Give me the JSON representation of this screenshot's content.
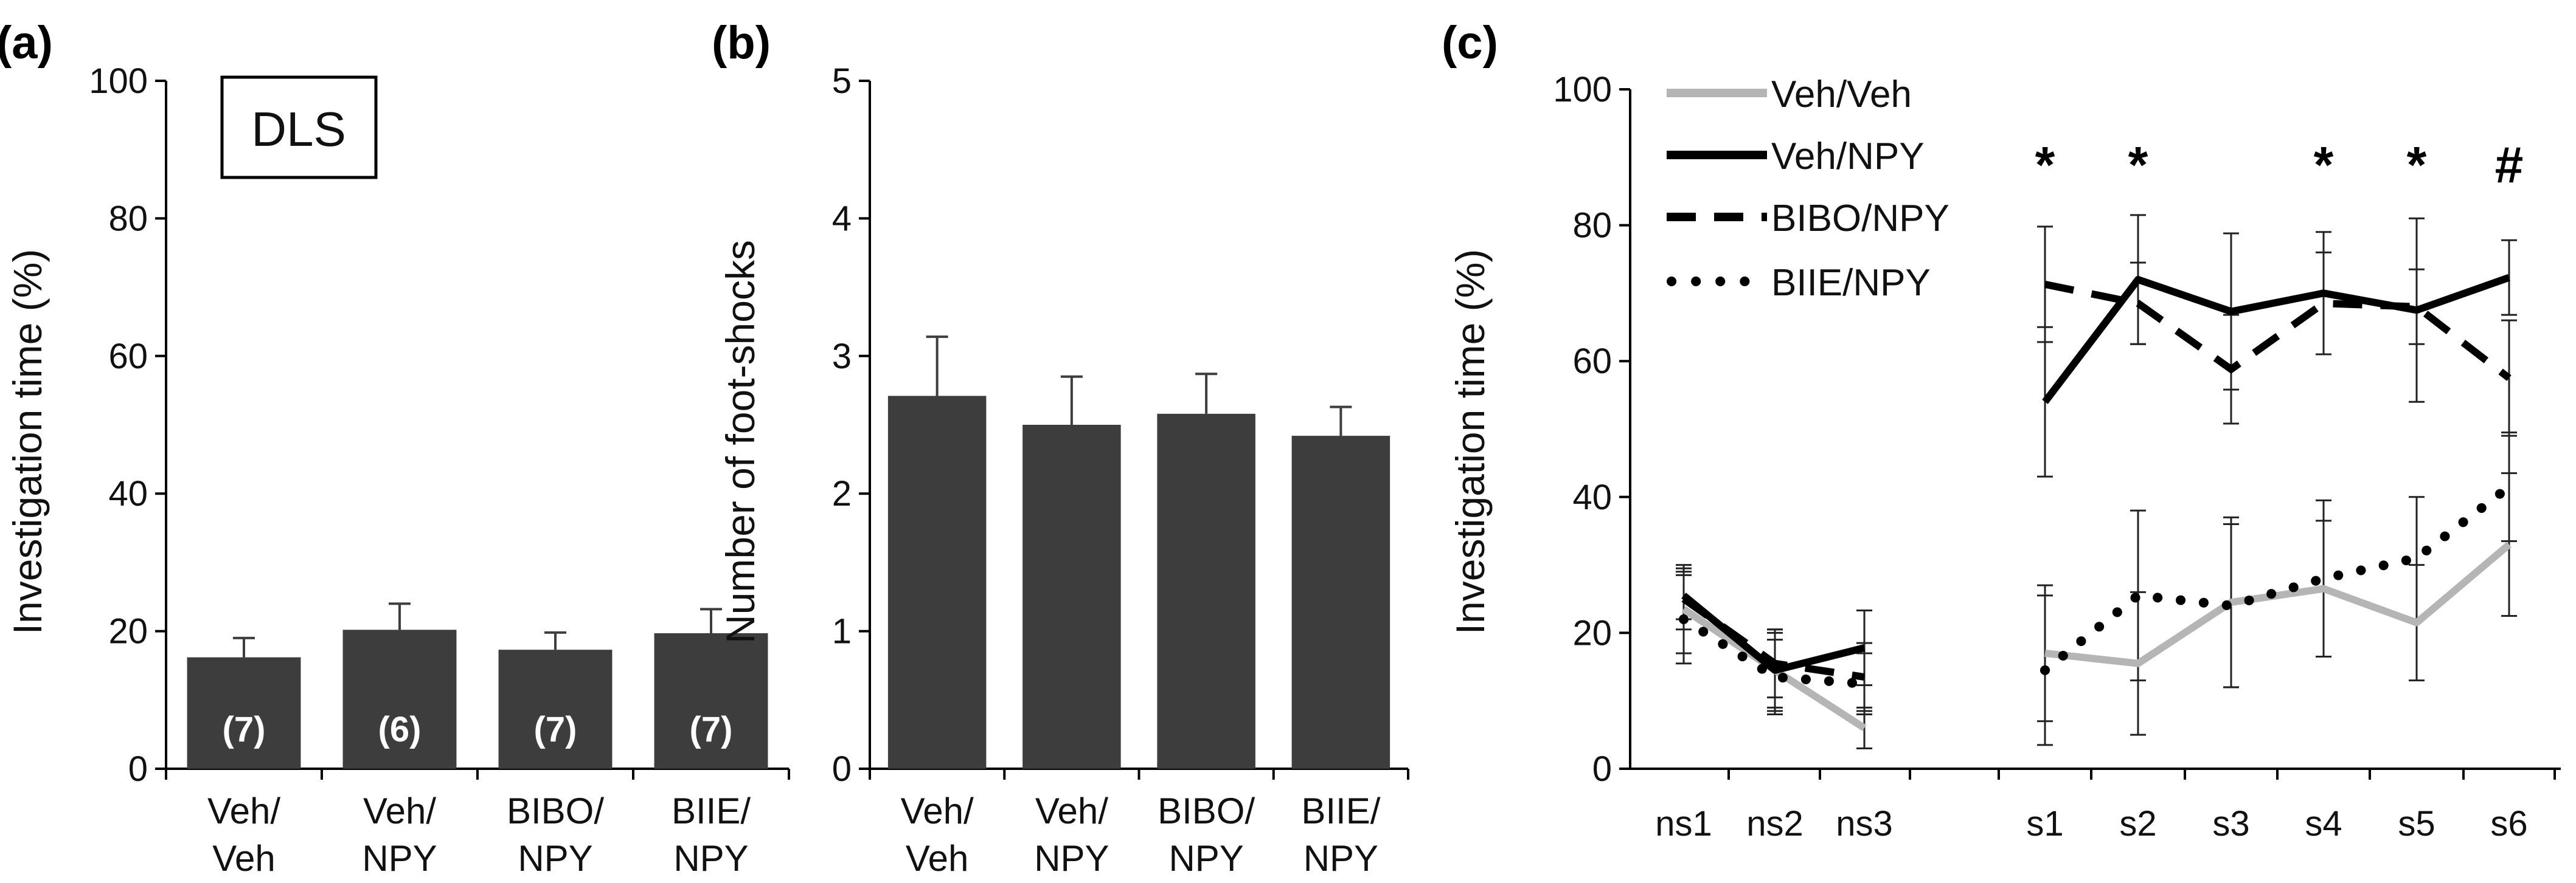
{
  "colors": {
    "bar": "#3d3d3d",
    "axis": "#000000",
    "veh_veh": "#b5b5b5",
    "black": "#000000",
    "bar_label": "#ffffff"
  },
  "panels": {
    "a": {
      "label": "(a)",
      "inset_label": "DLS"
    },
    "b": {
      "label": "(b)"
    },
    "c": {
      "label": "(c)"
    }
  },
  "chart_data": [
    {
      "id": "a",
      "type": "bar",
      "ylabel": "Investigation time (%)",
      "ylim": [
        0,
        100
      ],
      "yticks": [
        0,
        20,
        40,
        60,
        80,
        100
      ],
      "categories": [
        [
          "Veh/",
          "Veh"
        ],
        [
          "Veh/",
          "NPY"
        ],
        [
          "BIBO/",
          "NPY"
        ],
        [
          "BIIE/",
          "NPY"
        ]
      ],
      "values": [
        16.2,
        20.2,
        17.3,
        19.7
      ],
      "errors": [
        2.8,
        3.8,
        2.5,
        3.5
      ],
      "bar_labels": [
        "(7)",
        "(6)",
        "(7)",
        "(7)"
      ],
      "grid": false
    },
    {
      "id": "b",
      "type": "bar",
      "ylabel": "Number of foot-shocks",
      "ylim": [
        0,
        5
      ],
      "yticks": [
        0,
        1,
        2,
        3,
        4,
        5
      ],
      "categories": [
        [
          "Veh/",
          "Veh"
        ],
        [
          "Veh/",
          "NPY"
        ],
        [
          "BIBO/",
          "NPY"
        ],
        [
          "BIIE/",
          "NPY"
        ]
      ],
      "values": [
        2.71,
        2.5,
        2.58,
        2.42
      ],
      "errors": [
        0.43,
        0.35,
        0.29,
        0.21
      ],
      "grid": false
    },
    {
      "id": "c",
      "type": "line",
      "ylabel": "Investigation time (%)",
      "ylim": [
        0,
        100
      ],
      "yticks": [
        0,
        20,
        40,
        60,
        80,
        100
      ],
      "x": [
        "ns1",
        "ns2",
        "ns3",
        "s1",
        "s2",
        "s3",
        "s4",
        "s5",
        "s6"
      ],
      "segments": [
        [
          0,
          2
        ],
        [
          3,
          8
        ]
      ],
      "series": [
        {
          "name": "Veh/Veh",
          "style": "solid-gray",
          "values": [
            23.5,
            14.5,
            6.0,
            17.0,
            15.5,
            24.5,
            26.5,
            21.5,
            33.0
          ],
          "errors": [
            6.5,
            6.0,
            3.0,
            10.0,
            10.5,
            12.5,
            10.0,
            8.5,
            10.5
          ]
        },
        {
          "name": "Veh/NPY",
          "style": "solid-black",
          "values": [
            25.5,
            14.5,
            17.8,
            54.0,
            72.0,
            67.3,
            70.0,
            67.5,
            72.3
          ],
          "errors": [
            3.5,
            5.5,
            5.5,
            11.0,
            9.5,
            11.5,
            9.0,
            13.5,
            5.5
          ]
        },
        {
          "name": "BIBO/NPY",
          "style": "dashed-black",
          "values": [
            25.0,
            15.5,
            13.5,
            71.3,
            68.5,
            58.8,
            68.5,
            68.0,
            57.5
          ],
          "errors": [
            4.5,
            5.0,
            5.0,
            8.5,
            6.0,
            8.0,
            7.5,
            5.5,
            8.5
          ]
        },
        {
          "name": "BIIE/NPY",
          "style": "dotted-black",
          "values": [
            22.0,
            13.5,
            12.5,
            14.5,
            25.5,
            24.0,
            28.0,
            31.0,
            41.5
          ],
          "errors": [
            6.5,
            5.5,
            4.5,
            11.0,
            12.5,
            12.0,
            11.5,
            9.0,
            8.0
          ]
        }
      ],
      "annotations": [
        {
          "x": "s1",
          "text": "*"
        },
        {
          "x": "s2",
          "text": "*"
        },
        {
          "x": "s4",
          "text": "*"
        },
        {
          "x": "s5",
          "text": "*"
        },
        {
          "x": "s6",
          "text": "#"
        }
      ],
      "legend_placement": "top-left",
      "grid": false
    }
  ]
}
